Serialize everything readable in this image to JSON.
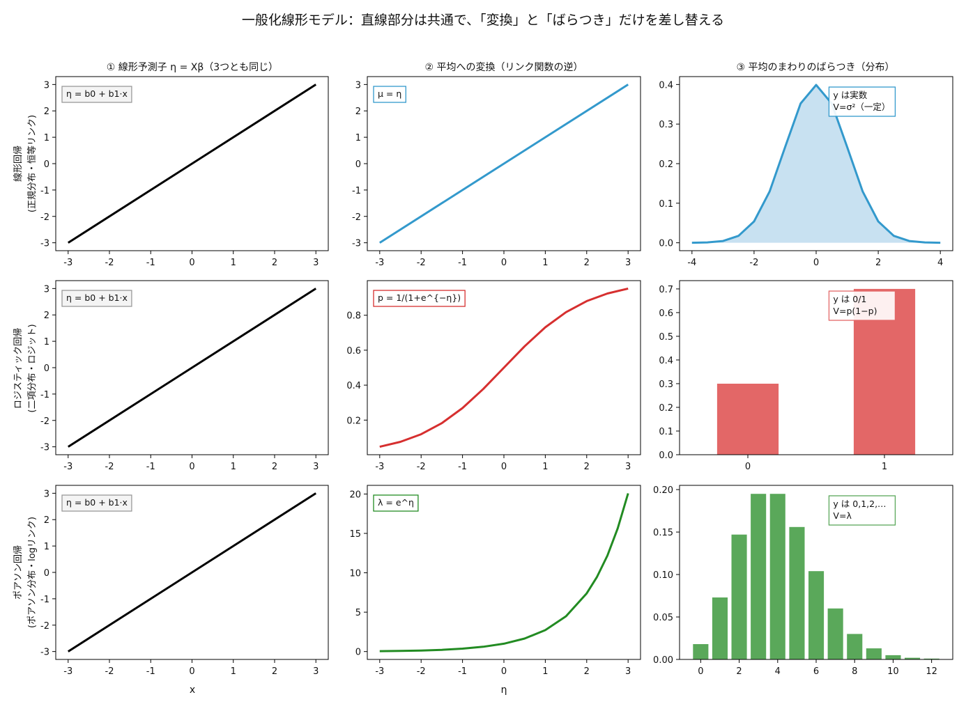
{
  "suptitle": "一般化線形モデル：直線部分は共通で、「変換」と「ばらつき」だけを差し替える",
  "column_titles": [
    "① 線形予測子 η = Xβ（3つとも同じ）",
    "② 平均への変換（リンク関数の逆）",
    "③ 平均のまわりのばらつき（分布）"
  ],
  "row_labels": [
    [
      "線形回帰",
      "(正規分布・恒等リンク)"
    ],
    [
      "ロジスティック回帰",
      "(二項分布・ロジット)"
    ],
    [
      "ポアソン回帰",
      "(ポアソン分布・logリンク)"
    ]
  ],
  "xlabels": [
    "x",
    "η",
    ""
  ],
  "chart_data": [
    {
      "panel": "row1-col1",
      "type": "line",
      "formula": "η = b0 + b1·x",
      "color": "#000000",
      "x": [
        -3,
        3
      ],
      "y": [
        -3,
        3
      ],
      "xlim": [
        -3.3,
        3.3
      ],
      "ylim": [
        -3.3,
        3.3
      ],
      "xticks": [
        -3,
        -2,
        -1,
        0,
        1,
        2,
        3
      ],
      "yticks": [
        -3,
        -2,
        -1,
        0,
        1,
        2,
        3
      ]
    },
    {
      "panel": "row1-col2",
      "type": "line",
      "formula": "μ = η",
      "color": "#3399cc",
      "x": [
        -3,
        3
      ],
      "y": [
        -3,
        3
      ],
      "xlim": [
        -3.3,
        3.3
      ],
      "ylim": [
        -3.3,
        3.3
      ],
      "xticks": [
        -3,
        -2,
        -1,
        0,
        1,
        2,
        3
      ],
      "yticks": [
        -3,
        -2,
        -1,
        0,
        1,
        2,
        3
      ]
    },
    {
      "panel": "row1-col3",
      "type": "area",
      "note": [
        "y は実数",
        "V=σ²（一定）"
      ],
      "color": "#3399cc",
      "fill": "#c8e1f1",
      "x": [
        -4,
        -3.5,
        -3,
        -2.5,
        -2,
        -1.5,
        -1,
        -0.5,
        0,
        0.5,
        1,
        1.5,
        2,
        2.5,
        3,
        3.5,
        4
      ],
      "y": [
        0.0001,
        0.0009,
        0.0044,
        0.0175,
        0.054,
        0.1295,
        0.242,
        0.3521,
        0.3989,
        0.3521,
        0.242,
        0.1295,
        0.054,
        0.0175,
        0.0044,
        0.0009,
        0.0001
      ],
      "xlim": [
        -4.4,
        4.4
      ],
      "ylim": [
        -0.02,
        0.42
      ],
      "xticks": [
        -4,
        -2,
        0,
        2,
        4
      ],
      "yticks": [
        0.0,
        0.1,
        0.2,
        0.3,
        0.4
      ]
    },
    {
      "panel": "row2-col1",
      "type": "line",
      "formula": "η = b0 + b1·x",
      "color": "#000000",
      "x": [
        -3,
        3
      ],
      "y": [
        -3,
        3
      ],
      "xlim": [
        -3.3,
        3.3
      ],
      "ylim": [
        -3.3,
        3.3
      ],
      "xticks": [
        -3,
        -2,
        -1,
        0,
        1,
        2,
        3
      ],
      "yticks": [
        -3,
        -2,
        -1,
        0,
        1,
        2,
        3
      ]
    },
    {
      "panel": "row2-col2",
      "type": "line",
      "formula": "p = 1/(1+e^{−η})",
      "color": "#d62f2f",
      "x": [
        -3,
        -2.5,
        -2,
        -1.5,
        -1,
        -0.5,
        0,
        0.5,
        1,
        1.5,
        2,
        2.5,
        3
      ],
      "y": [
        0.0474,
        0.0759,
        0.1192,
        0.1824,
        0.2689,
        0.3775,
        0.5,
        0.6225,
        0.7311,
        0.8176,
        0.8808,
        0.9241,
        0.9526
      ],
      "xlim": [
        -3.3,
        3.3
      ],
      "ylim": [
        0.002,
        0.998
      ],
      "xticks": [
        -3,
        -2,
        -1,
        0,
        1,
        2,
        3
      ],
      "yticks": [
        0.2,
        0.4,
        0.6,
        0.8
      ]
    },
    {
      "panel": "row2-col3",
      "type": "bar",
      "note": [
        "y は 0/1",
        "V=p(1−p)"
      ],
      "color": "#e36767",
      "categories": [
        0,
        1
      ],
      "values": [
        0.3,
        0.7
      ],
      "xlim": [
        -0.5,
        1.5
      ],
      "ylim": [
        0,
        0.735
      ],
      "xticks": [
        0,
        1
      ],
      "yticks": [
        0.0,
        0.1,
        0.2,
        0.3,
        0.4,
        0.5,
        0.6,
        0.7
      ]
    },
    {
      "panel": "row3-col1",
      "type": "line",
      "formula": "η = b0 + b1·x",
      "color": "#000000",
      "x": [
        -3,
        3
      ],
      "y": [
        -3,
        3
      ],
      "xlim": [
        -3.3,
        3.3
      ],
      "ylim": [
        -3.3,
        3.3
      ],
      "xticks": [
        -3,
        -2,
        -1,
        0,
        1,
        2,
        3
      ],
      "yticks": [
        -3,
        -2,
        -1,
        0,
        1,
        2,
        3
      ]
    },
    {
      "panel": "row3-col2",
      "type": "line",
      "formula": "λ = e^η",
      "color": "#228b22",
      "x": [
        -3,
        -2.5,
        -2,
        -1.5,
        -1,
        -0.5,
        0,
        0.5,
        1,
        1.5,
        2,
        2.25,
        2.5,
        2.75,
        3
      ],
      "y": [
        0.05,
        0.082,
        0.135,
        0.223,
        0.368,
        0.607,
        1.0,
        1.649,
        2.718,
        4.482,
        7.389,
        9.488,
        12.182,
        15.643,
        20.086
      ],
      "xlim": [
        -3.3,
        3.3
      ],
      "ylim": [
        -1.0,
        21.1
      ],
      "xticks": [
        -3,
        -2,
        -1,
        0,
        1,
        2,
        3
      ],
      "yticks": [
        0,
        5,
        10,
        15,
        20
      ]
    },
    {
      "panel": "row3-col3",
      "type": "bar",
      "note": [
        "y は 0,1,2,…",
        "V=λ"
      ],
      "color": "#5aa85a",
      "categories": [
        0,
        1,
        2,
        3,
        4,
        5,
        6,
        7,
        8,
        9,
        10,
        11,
        12
      ],
      "values": [
        0.018,
        0.073,
        0.147,
        0.195,
        0.195,
        0.156,
        0.104,
        0.06,
        0.03,
        0.013,
        0.005,
        0.002,
        0.001
      ],
      "xlim": [
        -1.1,
        13.1
      ],
      "ylim": [
        0,
        0.205
      ],
      "xticks": [
        0,
        2,
        4,
        6,
        8,
        10,
        12
      ],
      "yticks": [
        0.0,
        0.05,
        0.1,
        0.15,
        0.2
      ]
    }
  ]
}
